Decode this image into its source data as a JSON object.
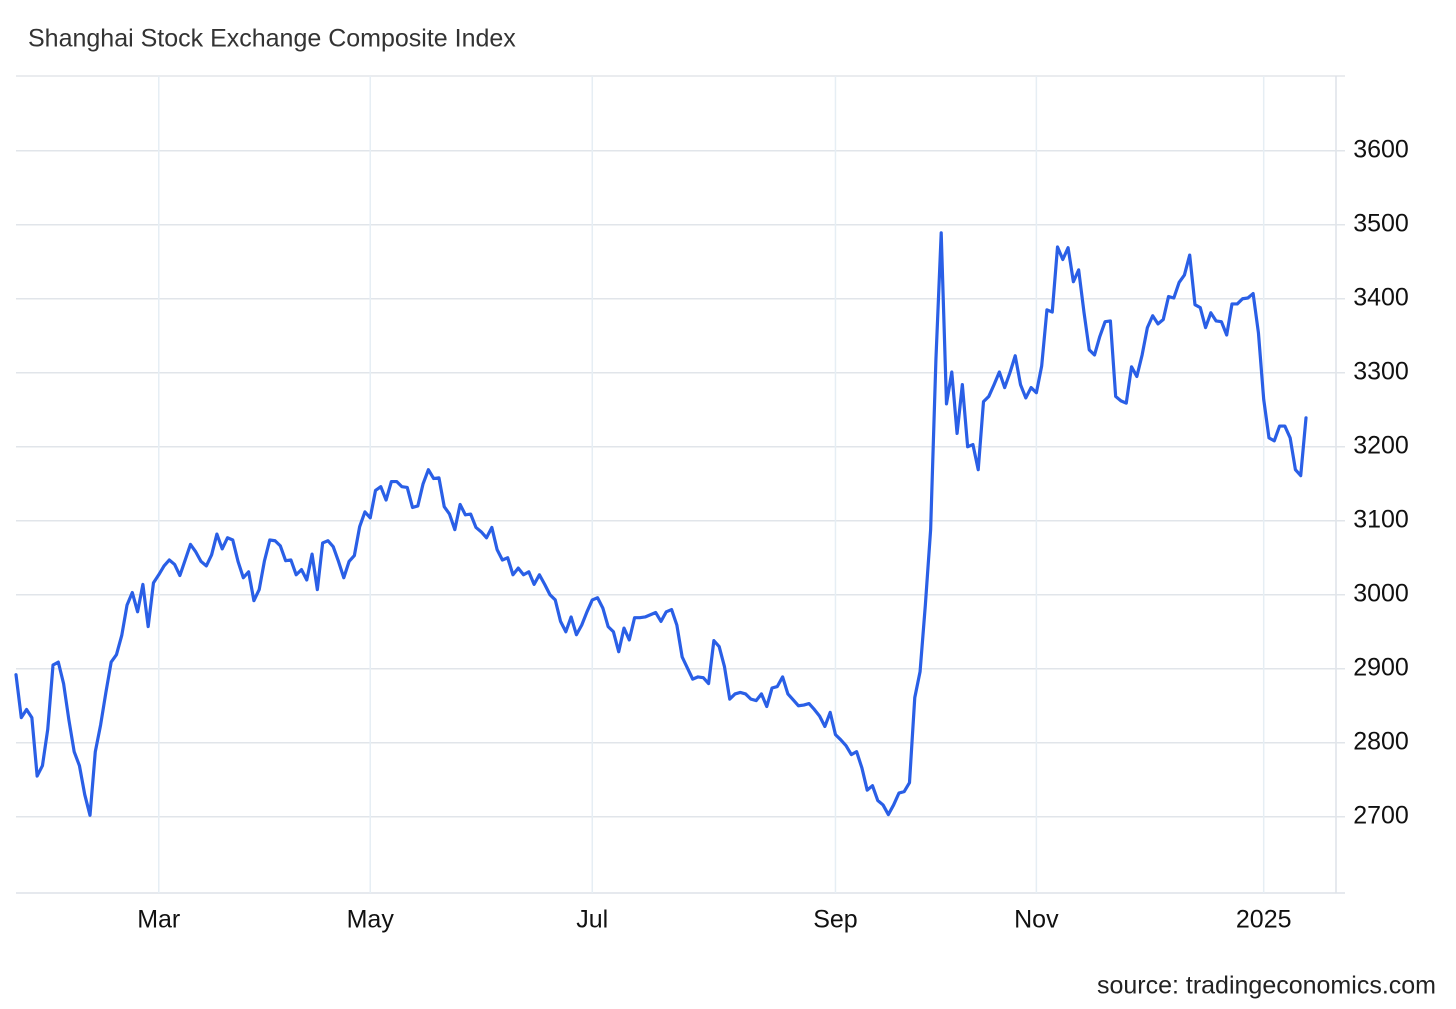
{
  "chart_data": {
    "type": "line",
    "title": "Shanghai Stock Exchange Composite Index",
    "source": "source: tradingeconomics.com",
    "categories": [
      null,
      null,
      null,
      null,
      null,
      null,
      null,
      null,
      null,
      null,
      null,
      null,
      null,
      null,
      null,
      null,
      null,
      null,
      null,
      null,
      null,
      null,
      null,
      null,
      null,
      null,
      null,
      "Mar",
      null,
      null,
      null,
      null,
      null,
      null,
      null,
      null,
      null,
      null,
      null,
      null,
      null,
      null,
      null,
      null,
      null,
      null,
      null,
      null,
      null,
      null,
      null,
      null,
      null,
      null,
      null,
      null,
      null,
      null,
      null,
      null,
      null,
      null,
      null,
      null,
      null,
      null,
      null,
      "May",
      null,
      null,
      null,
      null,
      null,
      null,
      null,
      null,
      null,
      null,
      null,
      null,
      null,
      null,
      null,
      null,
      null,
      null,
      null,
      null,
      null,
      null,
      null,
      null,
      null,
      null,
      null,
      null,
      null,
      null,
      null,
      null,
      null,
      null,
      null,
      null,
      null,
      null,
      null,
      null,
      null,
      "Jul",
      null,
      null,
      null,
      null,
      null,
      null,
      null,
      null,
      null,
      null,
      null,
      null,
      null,
      null,
      null,
      null,
      null,
      null,
      null,
      null,
      null,
      null,
      null,
      null,
      null,
      null,
      null,
      null,
      null,
      null,
      null,
      null,
      null,
      null,
      null,
      null,
      null,
      null,
      null,
      null,
      null,
      null,
      null,
      null,
      null,
      "Sep",
      null,
      null,
      null,
      null,
      null,
      null,
      null,
      null,
      null,
      null,
      null,
      null,
      null,
      null,
      null,
      null,
      null,
      null,
      null,
      null,
      null,
      null,
      null,
      null,
      null,
      null,
      null,
      null,
      null,
      null,
      null,
      null,
      null,
      null,
      null,
      null,
      null,
      "Nov",
      null,
      null,
      null,
      null,
      null,
      null,
      null,
      null,
      null,
      null,
      null,
      null,
      null,
      null,
      null,
      null,
      null,
      null,
      null,
      null,
      null,
      null,
      null,
      null,
      null,
      null,
      null,
      null,
      null,
      null,
      null,
      null,
      null,
      null,
      null,
      null,
      null,
      null,
      null,
      null,
      null,
      null,
      "2025",
      null,
      null,
      null,
      null,
      null,
      null,
      null,
      null
    ],
    "values": [
      2892,
      2834,
      2845,
      2834,
      2755,
      2769,
      2818,
      2905,
      2909,
      2880,
      2831,
      2788,
      2769,
      2730,
      2702,
      2788,
      2824,
      2868,
      2909,
      2919,
      2945,
      2986,
      3003,
      2977,
      3014,
      2957,
      3016,
      3027,
      3039,
      3047,
      3041,
      3026,
      3047,
      3068,
      3058,
      3045,
      3039,
      3054,
      3082,
      3062,
      3077,
      3074,
      3045,
      3023,
      3031,
      2992,
      3007,
      3046,
      3074,
      3073,
      3066,
      3046,
      3047,
      3027,
      3034,
      3020,
      3055,
      3007,
      3070,
      3073,
      3065,
      3045,
      3023,
      3045,
      3053,
      3092,
      3112,
      3104,
      3141,
      3146,
      3128,
      3153,
      3153,
      3146,
      3145,
      3118,
      3120,
      3150,
      3169,
      3157,
      3158,
      3119,
      3109,
      3088,
      3122,
      3108,
      3109,
      3091,
      3085,
      3077,
      3091,
      3061,
      3047,
      3050,
      3027,
      3036,
      3027,
      3031,
      3014,
      3027,
      3014,
      3000,
      2993,
      2964,
      2950,
      2970,
      2946,
      2959,
      2977,
      2993,
      2996,
      2982,
      2957,
      2950,
      2923,
      2955,
      2939,
      2969,
      2969,
      2970,
      2973,
      2976,
      2964,
      2977,
      2980,
      2959,
      2916,
      2901,
      2886,
      2889,
      2888,
      2880,
      2938,
      2930,
      2903,
      2859,
      2866,
      2868,
      2866,
      2859,
      2857,
      2866,
      2849,
      2874,
      2876,
      2889,
      2866,
      2858,
      2850,
      2851,
      2853,
      2845,
      2836,
      2822,
      2841,
      2811,
      2804,
      2796,
      2784,
      2788,
      2766,
      2736,
      2742,
      2722,
      2716,
      2703,
      2716,
      2732,
      2734,
      2746,
      2861,
      2896,
      2986,
      3088,
      3318,
      3489,
      3258,
      3301,
      3218,
      3284,
      3200,
      3203,
      3169,
      3261,
      3268,
      3284,
      3301,
      3280,
      3300,
      3323,
      3284,
      3266,
      3280,
      3273,
      3309,
      3385,
      3382,
      3470,
      3453,
      3469,
      3423,
      3439,
      3382,
      3331,
      3324,
      3349,
      3369,
      3370,
      3268,
      3262,
      3259,
      3308,
      3295,
      3324,
      3361,
      3377,
      3366,
      3372,
      3403,
      3401,
      3422,
      3432,
      3459,
      3392,
      3388,
      3361,
      3381,
      3370,
      3369,
      3351,
      3393,
      3393,
      3400,
      3401,
      3407,
      3354,
      3264,
      3212,
      3208,
      3228,
      3228,
      3212,
      3169,
      3161,
      3239
    ],
    "color": "#2a5fe6",
    "ylim": [
      2597,
      3701
    ],
    "yticks": [
      2700,
      2800,
      2900,
      3000,
      3100,
      3200,
      3300,
      3400,
      3500,
      3600
    ],
    "grid": true
  }
}
